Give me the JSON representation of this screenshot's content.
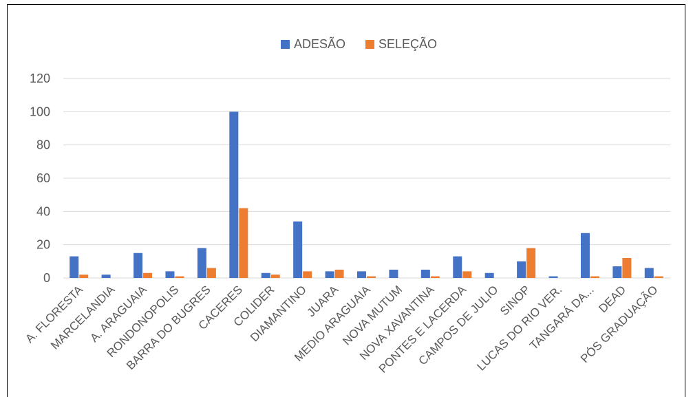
{
  "chart_data": {
    "type": "bar",
    "title": "",
    "xlabel": "",
    "ylabel": "",
    "ylim": [
      0,
      120
    ],
    "yticks": [
      0,
      20,
      40,
      60,
      80,
      100,
      120
    ],
    "grid": true,
    "legend_position": "top",
    "categories": [
      "A. FLORESTA",
      "MARCELANDIA",
      "A. ARAGUAIA",
      "RONDONOPOLIS",
      "BARRA DO BUGRES",
      "CACERES",
      "COLIDER",
      "DIAMANTINO",
      "JUARA",
      "MEDIO ARAGUAIA",
      "NOVA MUTUM",
      "NOVA XAVANTINA",
      "PONTES E LACERDA",
      "CAMPOS DE JULIO",
      "SINOP",
      "LUCAS DO RIO VER.",
      "TANGARÁ DA...",
      "DEAD",
      "PÓS GRADUAÇÃO"
    ],
    "series": [
      {
        "name": "ADESÃO",
        "color": "#4472C4",
        "values": [
          13,
          2,
          15,
          4,
          18,
          100,
          3,
          34,
          4,
          4,
          5,
          5,
          13,
          3,
          10,
          1,
          27,
          7,
          6
        ]
      },
      {
        "name": "SELEÇÃO",
        "color": "#ED7D31",
        "values": [
          2,
          0,
          3,
          1,
          6,
          42,
          2,
          4,
          5,
          1,
          0,
          1,
          4,
          0,
          18,
          0,
          1,
          12,
          1
        ]
      }
    ]
  }
}
